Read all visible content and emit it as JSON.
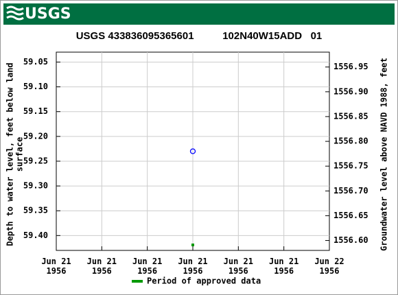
{
  "header": {
    "logo": "USGS"
  },
  "chart_data": {
    "type": "scatter",
    "title": "USGS 433836095365601          102N40W15ADD   01",
    "ylabel": [
      "Depth to water level, feet below land",
      "surface"
    ],
    "y2label": "Groundwater level above NAVD 1988, feet",
    "categories": [
      "Jun 21\n1956",
      "Jun 21\n1956",
      "Jun 21\n1956",
      "Jun 21\n1956",
      "Jun 21\n1956",
      "Jun 21\n1956",
      "Jun 22\n1956"
    ],
    "values": [
      null,
      null,
      null,
      59.23,
      null,
      null,
      null
    ],
    "color": "#0000ff",
    "approved": [
      false,
      false,
      false,
      true,
      false,
      false,
      false
    ],
    "legend": {
      "label": "Period of approved data",
      "color": "#009900"
    },
    "ylim": [
      59.03,
      59.43
    ],
    "yticks": [
      59.05,
      {
        "value": 59.1,
        "label": "59.10"
      },
      59.15,
      {
        "value": 59.2,
        "label": "59.20"
      },
      59.25,
      {
        "value": 59.3,
        "label": "59.30"
      },
      59.35,
      {
        "value": 59.4,
        "label": "59.40"
      }
    ],
    "y2lim": [
      1556.98,
      1556.58
    ],
    "y2ticks": [
      1556.95,
      {
        "value": 1556.9,
        "label": "1556.90"
      },
      1556.85,
      {
        "value": 1556.8,
        "label": "1556.80"
      },
      1556.75,
      {
        "value": 1556.7,
        "label": "1556.70"
      },
      1556.65,
      {
        "value": 1556.6,
        "label": "1556.60"
      }
    ],
    "grid": true
  }
}
